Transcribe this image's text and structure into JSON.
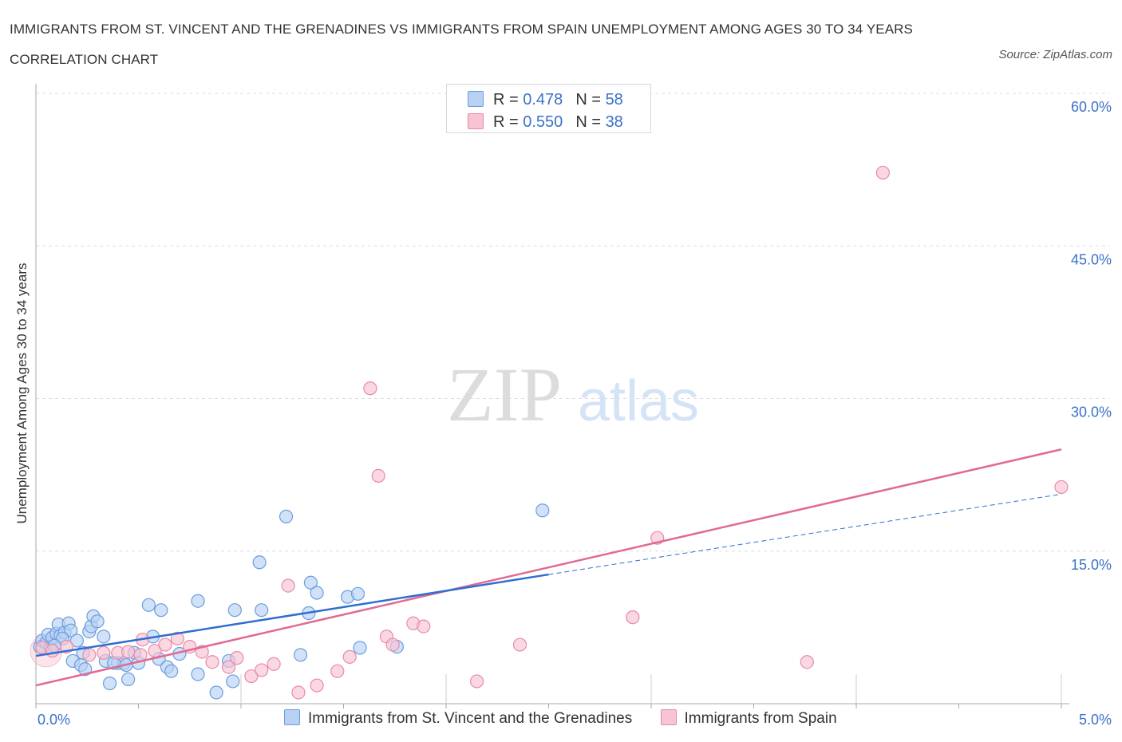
{
  "title": "IMMIGRANTS FROM ST. VINCENT AND THE GRENADINES VS IMMIGRANTS FROM SPAIN UNEMPLOYMENT AMONG AGES 30 TO 34 YEARS CORRELATION CHART",
  "source": "Source: ZipAtlas.com",
  "watermark": {
    "zip": "ZIP",
    "atlas": "atlas"
  },
  "legend": {
    "rows": [
      {
        "r_label": "R =",
        "r_value": "0.478",
        "n_label": "N =",
        "n_value": "58"
      },
      {
        "r_label": "R =",
        "r_value": "0.550",
        "n_label": "N =",
        "n_value": "38"
      }
    ]
  },
  "colors": {
    "blue_fill": "#b8d1f3",
    "blue_stroke": "#6a9de0",
    "blue_line": "#2f6fd0",
    "pink_fill": "#f8c3d3",
    "pink_stroke": "#e88aa8",
    "pink_line": "#e06a94",
    "tick_text": "#3a72c8",
    "grid": "#dddddd"
  },
  "chart_data": {
    "type": "scatter",
    "title": "IMMIGRANTS FROM ST. VINCENT AND THE GRENADINES VS IMMIGRANTS FROM SPAIN UNEMPLOYMENT AMONG AGES 30 TO 34 YEARS CORRELATION CHART",
    "xlabel": "",
    "ylabel": "Unemployment Among Ages 30 to 34 years",
    "xlim": [
      0,
      5
    ],
    "ylim": [
      0,
      60
    ],
    "x_tick_labels": [
      "0.0%",
      "5.0%"
    ],
    "y_ticks": [
      15,
      30,
      45,
      60
    ],
    "y_tick_labels": [
      "15.0%",
      "30.0%",
      "45.0%",
      "60.0%"
    ],
    "grid": true,
    "legend_position": "top-center",
    "series": [
      {
        "name": "Immigrants from St. Vincent and the Grenadines",
        "color": "#b8d1f3",
        "points": [
          [
            0.02,
            5.6
          ],
          [
            0.03,
            6.2
          ],
          [
            0.05,
            6.0
          ],
          [
            0.06,
            6.8
          ],
          [
            0.07,
            5.5
          ],
          [
            0.08,
            6.5
          ],
          [
            0.1,
            6.9
          ],
          [
            0.11,
            7.8
          ],
          [
            0.12,
            6.7
          ],
          [
            0.14,
            7.0
          ],
          [
            0.16,
            7.9
          ],
          [
            0.17,
            7.2
          ],
          [
            0.2,
            6.2
          ],
          [
            0.18,
            4.2
          ],
          [
            0.22,
            3.8
          ],
          [
            0.24,
            3.4
          ],
          [
            0.23,
            5.0
          ],
          [
            0.26,
            7.1
          ],
          [
            0.27,
            7.6
          ],
          [
            0.28,
            8.6
          ],
          [
            0.3,
            8.1
          ],
          [
            0.33,
            6.6
          ],
          [
            0.34,
            4.2
          ],
          [
            0.36,
            2.0
          ],
          [
            0.4,
            4.0
          ],
          [
            0.43,
            4.0
          ],
          [
            0.44,
            3.8
          ],
          [
            0.45,
            2.4
          ],
          [
            0.48,
            5.0
          ],
          [
            0.5,
            4.0
          ],
          [
            0.55,
            9.7
          ],
          [
            0.57,
            6.6
          ],
          [
            0.6,
            4.4
          ],
          [
            0.61,
            9.2
          ],
          [
            0.64,
            3.6
          ],
          [
            0.66,
            3.2
          ],
          [
            0.79,
            2.9
          ],
          [
            0.79,
            10.1
          ],
          [
            0.88,
            1.1
          ],
          [
            0.94,
            4.2
          ],
          [
            0.96,
            2.2
          ],
          [
            0.97,
            9.2
          ],
          [
            1.09,
            13.9
          ],
          [
            1.1,
            9.2
          ],
          [
            1.22,
            18.4
          ],
          [
            1.29,
            4.8
          ],
          [
            1.33,
            8.9
          ],
          [
            1.34,
            11.9
          ],
          [
            1.37,
            10.9
          ],
          [
            1.52,
            10.5
          ],
          [
            1.57,
            10.8
          ],
          [
            1.58,
            5.5
          ],
          [
            1.76,
            5.6
          ],
          [
            2.47,
            19.0
          ],
          [
            0.13,
            6.4
          ],
          [
            0.09,
            5.7
          ],
          [
            0.7,
            4.9
          ],
          [
            0.38,
            4.0
          ]
        ]
      },
      {
        "name": "Immigrants from Spain",
        "color": "#f8c3d3",
        "points": [
          [
            0.03,
            5.5
          ],
          [
            0.08,
            5.2
          ],
          [
            0.15,
            5.6
          ],
          [
            0.26,
            4.8
          ],
          [
            0.33,
            5.0
          ],
          [
            0.4,
            5.0
          ],
          [
            0.45,
            5.1
          ],
          [
            0.51,
            4.8
          ],
          [
            0.52,
            6.3
          ],
          [
            0.58,
            5.2
          ],
          [
            0.63,
            5.8
          ],
          [
            0.69,
            6.4
          ],
          [
            0.75,
            5.6
          ],
          [
            0.81,
            5.1
          ],
          [
            0.86,
            4.1
          ],
          [
            0.94,
            3.6
          ],
          [
            0.98,
            4.5
          ],
          [
            1.05,
            2.7
          ],
          [
            1.1,
            3.3
          ],
          [
            1.16,
            3.9
          ],
          [
            1.23,
            11.6
          ],
          [
            1.28,
            1.1
          ],
          [
            1.37,
            1.8
          ],
          [
            1.47,
            3.2
          ],
          [
            1.53,
            4.6
          ],
          [
            1.63,
            31.0
          ],
          [
            1.67,
            22.4
          ],
          [
            1.71,
            6.6
          ],
          [
            1.74,
            5.8
          ],
          [
            1.84,
            7.9
          ],
          [
            1.89,
            7.6
          ],
          [
            2.15,
            2.2
          ],
          [
            2.36,
            5.8
          ],
          [
            2.91,
            8.5
          ],
          [
            3.03,
            16.3
          ],
          [
            3.76,
            4.1
          ],
          [
            4.13,
            52.2
          ],
          [
            5.0,
            21.3
          ]
        ]
      }
    ],
    "trend_lines": [
      {
        "series": "Immigrants from St. Vincent and the Grenadines",
        "solid_x": [
          0.0,
          2.5
        ],
        "solid_y": [
          4.7,
          12.7
        ],
        "dashed_x": [
          2.5,
          5.0
        ],
        "dashed_y": [
          12.7,
          20.6
        ]
      },
      {
        "series": "Immigrants from Spain",
        "solid_x": [
          0.0,
          5.0
        ],
        "solid_y": [
          1.8,
          25.0
        ]
      }
    ]
  }
}
